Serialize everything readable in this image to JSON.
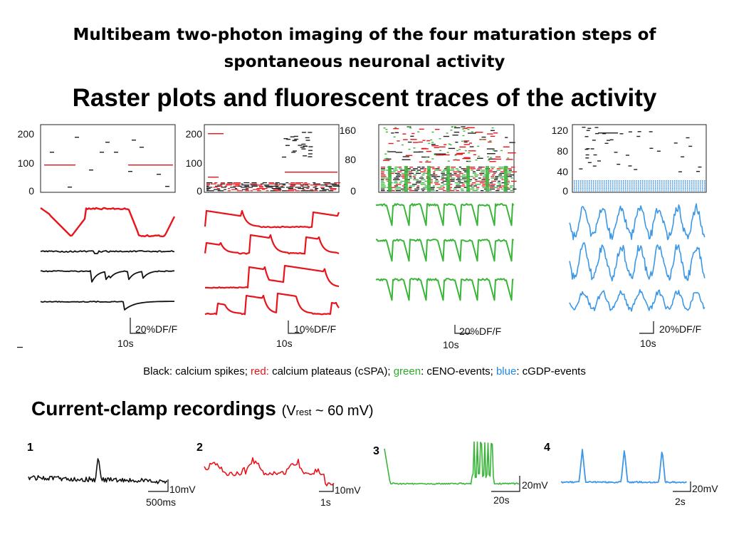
{
  "title_line1": "Multibeam two-photon imaging of the four maturation steps of",
  "title_line2": "spontaneous neuronal activity",
  "subtitle": "Raster plots and fluorescent traces of the activity",
  "raster_panels": [
    {
      "ticks": [
        "200",
        "100",
        "0"
      ],
      "scale_y": "20%DF/F",
      "scale_x": "10s"
    },
    {
      "ticks": [
        "200",
        "100",
        "0"
      ],
      "scale_y": "10%DF/F",
      "scale_x": "10s"
    },
    {
      "ticks": [
        "160",
        "80",
        "0"
      ],
      "scale_y": "20%DF/F",
      "scale_x": "10s"
    },
    {
      "ticks": [
        "120",
        "80",
        "40",
        "0"
      ],
      "scale_y": "20%DF/F",
      "scale_x": "10s"
    }
  ],
  "legend": {
    "black_label": "Black",
    "black_text": ": calcium spikes; ",
    "red_label": "red:",
    "red_text": " calcium plateaus (cSPA); ",
    "green_label": "green",
    "green_text": ": cENO-events; ",
    "blue_label": "blue",
    "blue_text": ": cGDP-events"
  },
  "current_clamp": {
    "title": "Current-clamp recordings",
    "v_open": "(V",
    "v_sub": "rest",
    "v_close": " ~ 60 mV)",
    "panels": [
      {
        "number": "1",
        "scale_y": "10mV",
        "scale_x": "500ms"
      },
      {
        "number": "2",
        "scale_y": "10mV",
        "scale_x": "1s"
      },
      {
        "number": "3",
        "scale_y": "20mV",
        "scale_x": "20s"
      },
      {
        "number": "4",
        "scale_y": "20mV",
        "scale_x": "2s"
      }
    ]
  },
  "colors": {
    "black": "#000000",
    "red": "#e8141b",
    "green": "#3ab53a",
    "blue": "#3c97e6"
  }
}
